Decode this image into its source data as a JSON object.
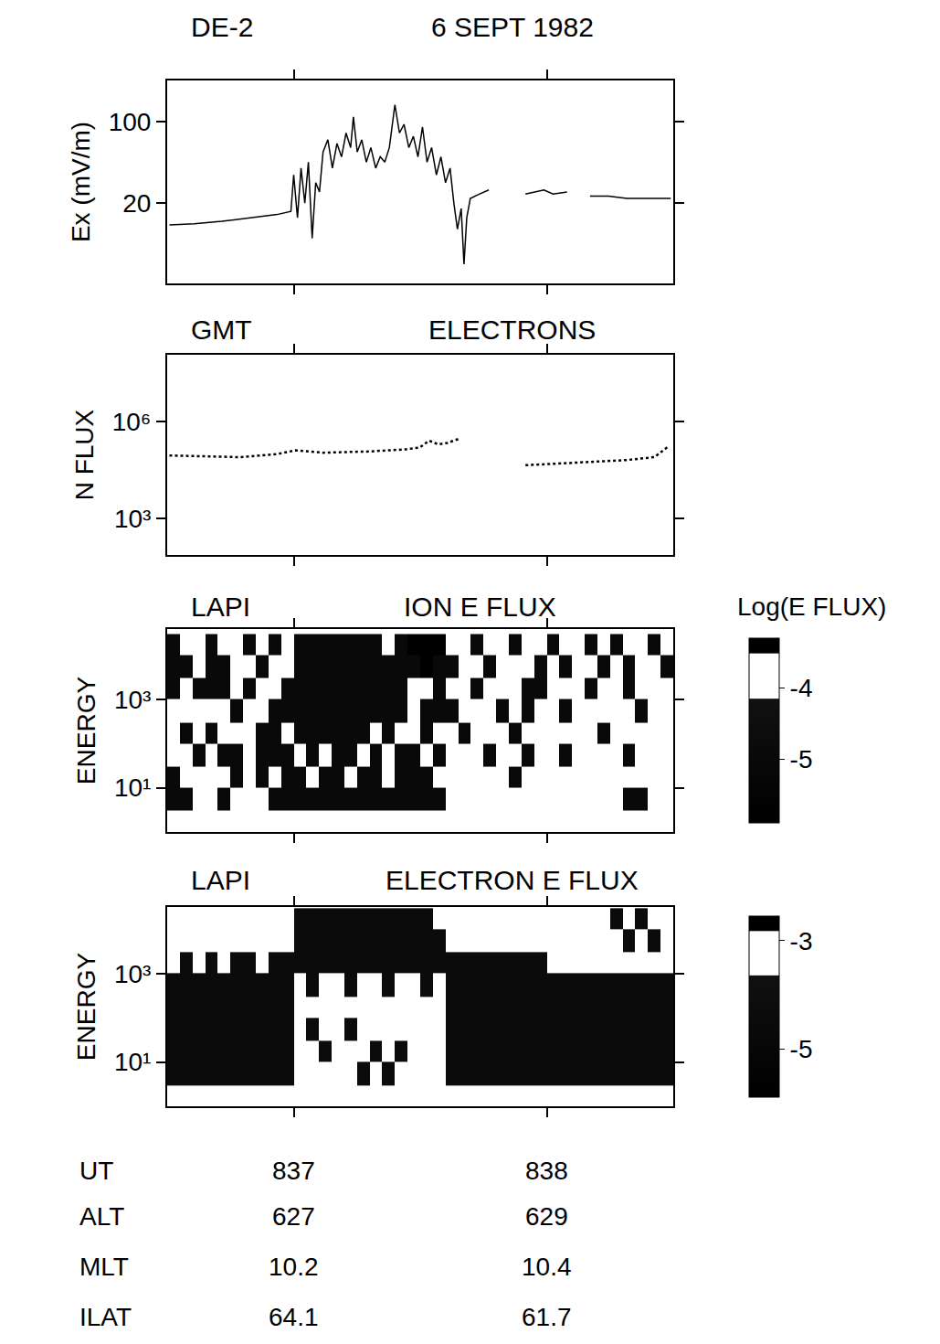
{
  "header": {
    "satellite": "DE-2",
    "date": "6 SEPT 1982"
  },
  "chart_data": [
    {
      "type": "line",
      "ylabel": "Ex (mV/m)",
      "log": "y",
      "color": "#000000",
      "line_style": "solid",
      "grid": false,
      "tick_labels": "y",
      "xlim": [
        836.5,
        838.5
      ],
      "xticks": [
        837,
        838
      ],
      "ylim": [
        4.1,
        226
      ],
      "yticks": [
        20,
        100
      ],
      "x": [
        836.509,
        836.607,
        836.716,
        836.825,
        836.935,
        836.989,
        837.0,
        837.015,
        837.029,
        837.044,
        837.058,
        837.073,
        837.087,
        837.102,
        837.116,
        837.135,
        837.153,
        837.171,
        837.189,
        837.207,
        837.225,
        837.236,
        837.251,
        837.269,
        837.287,
        837.305,
        837.324,
        837.342,
        837.36,
        837.378,
        837.4,
        837.418,
        837.436,
        837.455,
        837.473,
        837.491,
        837.509,
        837.527,
        837.545,
        837.564,
        837.582,
        837.6,
        837.618,
        837.633,
        837.647,
        837.662,
        837.673,
        837.684,
        837.698,
        837.735,
        837.771,
        837.789,
        837.916,
        837.953,
        837.989,
        838.025,
        838.08,
        838.116,
        838.171,
        838.244,
        838.316,
        838.389,
        838.462,
        838.49
      ],
      "values": [
        13,
        13.3,
        14,
        15,
        16,
        17,
        35,
        15,
        40,
        20,
        45,
        10,
        30,
        25,
        55,
        70,
        40,
        65,
        50,
        80,
        60,
        110,
        55,
        70,
        45,
        60,
        40,
        50,
        45,
        60,
        140,
        80,
        95,
        60,
        75,
        50,
        90,
        45,
        60,
        35,
        50,
        30,
        40,
        20,
        12,
        18,
        6,
        15,
        22,
        24,
        26,
        null,
        24,
        25,
        26,
        24,
        25,
        null,
        23,
        23,
        22,
        22,
        22,
        22
      ]
    },
    {
      "type": "line",
      "titles": [
        "GMT",
        "ELECTRONS"
      ],
      "ylabel": "N FLUX",
      "log": "y",
      "color": "#000000",
      "line_style": "dotted",
      "grid": false,
      "tick_labels": "y",
      "xlim": [
        836.5,
        838.5
      ],
      "xticks": [
        837,
        838
      ],
      "ylim": [
        74,
        120000000
      ],
      "yticks": [
        {
          "value": 1000,
          "label": "10³"
        },
        {
          "value": 1000000,
          "label": "10⁶"
        }
      ],
      "x": [
        836.509,
        836.644,
        836.789,
        836.935,
        837.007,
        837.116,
        837.298,
        837.444,
        837.498,
        837.535,
        837.571,
        837.607,
        837.655,
        837.68,
        837.916,
        838.025,
        838.171,
        838.316,
        838.425,
        838.48
      ],
      "values": [
        90000,
        85000,
        80000,
        100000,
        130000,
        110000,
        120000,
        140000,
        160000,
        260000,
        200000,
        220000,
        300000,
        null,
        45000,
        50000,
        55000,
        65000,
        80000,
        170000
      ]
    },
    {
      "type": "heatmap",
      "titles": [
        "LAPI",
        "ION E FLUX"
      ],
      "ylabel": "ENERGY",
      "log": "y",
      "grid": false,
      "tick_labels": "y",
      "xlim": [
        836.5,
        838.5
      ],
      "xticks": [
        837,
        838
      ],
      "ylim": [
        1,
        39000
      ],
      "yticks": [
        {
          "value": 10,
          "label": "10¹"
        },
        {
          "value": 1000,
          "label": "10³"
        }
      ],
      "x_bins": [
        836.5,
        836.55,
        836.6,
        836.65,
        836.7,
        836.75,
        836.8,
        836.85,
        836.9,
        836.95,
        837,
        837.05,
        837.1,
        837.15,
        837.2,
        837.25,
        837.3,
        837.35,
        837.4,
        837.45,
        837.5,
        837.55,
        837.6,
        837.65,
        837.7,
        837.75,
        837.8,
        837.85,
        837.9,
        837.95,
        838,
        838.05,
        838.1,
        838.15,
        838.2,
        838.25,
        838.3,
        838.35,
        838.4,
        838.45,
        838.5
      ],
      "y_bins": [
        3,
        10,
        30,
        100,
        300,
        1000,
        3000,
        10000,
        30000
      ],
      "z": [
        [
          -5,
          -5,
          null,
          null,
          -5,
          null,
          null,
          null,
          -5,
          -5,
          -5,
          -5,
          -5,
          -5,
          -5,
          -5,
          -5,
          -5,
          -5,
          -5,
          -5,
          -5,
          null,
          null,
          null,
          null,
          null,
          null,
          null,
          null,
          null,
          null,
          null,
          null,
          null,
          null,
          -5,
          -5,
          null,
          null
        ],
        [
          -5,
          null,
          null,
          null,
          null,
          -5,
          null,
          -5,
          null,
          -5,
          -5,
          null,
          -5,
          -5,
          null,
          -5,
          -5,
          null,
          -5,
          -5,
          -5,
          null,
          null,
          null,
          null,
          null,
          null,
          -5,
          null,
          null,
          null,
          null,
          null,
          null,
          null,
          null,
          null,
          null,
          null,
          null
        ],
        [
          null,
          null,
          -5,
          null,
          -5,
          -5,
          null,
          -5,
          -5,
          -5,
          null,
          -5,
          null,
          -5,
          -5,
          null,
          -5,
          null,
          -5,
          -5,
          null,
          -5,
          null,
          null,
          null,
          -5,
          null,
          null,
          -5,
          null,
          null,
          -5,
          null,
          null,
          null,
          null,
          -5,
          null,
          null,
          null
        ],
        [
          null,
          -5,
          null,
          -5,
          null,
          null,
          null,
          -5,
          -5,
          null,
          -5,
          -5,
          -5,
          -5,
          -5,
          -5,
          null,
          -5,
          null,
          null,
          -5,
          null,
          null,
          -5,
          null,
          null,
          null,
          -5,
          null,
          null,
          null,
          null,
          null,
          null,
          -5,
          null,
          null,
          null,
          null,
          null
        ],
        [
          null,
          null,
          null,
          null,
          null,
          -5,
          null,
          null,
          -5,
          -5,
          -5,
          -5,
          -5,
          -5,
          -5,
          -5,
          -5,
          -5,
          -5,
          -4,
          -5,
          -5,
          -5,
          null,
          null,
          null,
          -5,
          null,
          -5,
          null,
          null,
          -5,
          null,
          null,
          null,
          null,
          null,
          -5,
          null,
          null
        ],
        [
          -5,
          null,
          -5,
          -5,
          -5,
          null,
          -5,
          null,
          null,
          -5,
          -5,
          -5,
          -5,
          -5,
          -5,
          -5,
          -5,
          -5,
          -5,
          -4,
          -4,
          -5,
          null,
          null,
          -5,
          null,
          null,
          null,
          -5,
          -5,
          null,
          null,
          null,
          -5,
          null,
          null,
          -5,
          null,
          null,
          null
        ],
        [
          -5,
          -5,
          null,
          -5,
          -5,
          null,
          null,
          -5,
          null,
          null,
          -5,
          -5,
          -5,
          -5,
          -5,
          -5,
          -5,
          -5,
          -5,
          -5,
          -3.5,
          -5,
          -5,
          null,
          null,
          -5,
          null,
          null,
          null,
          -5,
          null,
          -5,
          null,
          null,
          -5,
          null,
          -5,
          null,
          null,
          -5
        ],
        [
          -5,
          null,
          null,
          -5,
          null,
          null,
          -5,
          null,
          -5,
          null,
          -5,
          -5,
          -5,
          -5,
          -5,
          -5,
          -5,
          null,
          -5,
          -3.5,
          -3.5,
          -3.5,
          null,
          null,
          -5,
          null,
          null,
          -5,
          null,
          null,
          -5,
          null,
          null,
          -5,
          null,
          -5,
          null,
          null,
          -5,
          null
        ]
      ],
      "colorbar": {
        "title": "Log(E FLUX)",
        "zlim": [
          -5.9,
          -3.3
        ],
        "zticks": [
          -5,
          -4
        ]
      }
    },
    {
      "type": "heatmap",
      "titles": [
        "LAPI",
        "ELECTRON E FLUX"
      ],
      "ylabel": "ENERGY",
      "log": "y",
      "grid": false,
      "tick_labels": "y",
      "xlim": [
        836.5,
        838.5
      ],
      "xticks": [
        837,
        838
      ],
      "ylim": [
        1,
        32000
      ],
      "yticks": [
        {
          "value": 10,
          "label": "10¹"
        },
        {
          "value": 1000,
          "label": "10³"
        }
      ],
      "x_bins": [
        836.5,
        836.55,
        836.6,
        836.65,
        836.7,
        836.75,
        836.8,
        836.85,
        836.9,
        836.95,
        837,
        837.05,
        837.1,
        837.15,
        837.2,
        837.25,
        837.3,
        837.35,
        837.4,
        837.45,
        837.5,
        837.55,
        837.6,
        837.65,
        837.7,
        837.75,
        837.8,
        837.85,
        837.9,
        837.95,
        838,
        838.05,
        838.1,
        838.15,
        838.2,
        838.25,
        838.3,
        838.35,
        838.4,
        838.45,
        838.5
      ],
      "y_bins": [
        3,
        10,
        30,
        100,
        300,
        1000,
        3000,
        10000,
        30000
      ],
      "z": [
        [
          -4.5,
          -4.5,
          -4.5,
          -4.5,
          -4.5,
          -4.5,
          -4.5,
          -4.5,
          -4.5,
          -4.5,
          -3.2,
          -3.2,
          -3.2,
          -3.2,
          -3.2,
          -4.5,
          -3.2,
          -4.5,
          -3.2,
          null,
          -3.2,
          null,
          -4.5,
          -4.5,
          -4.5,
          -4.5,
          -4.5,
          -4.5,
          -4.5,
          -4.5,
          -4.5,
          -4.5,
          -4.5,
          -4.5,
          -4.5,
          -4.5,
          -4.5,
          -4.5,
          -4.5,
          -4.5
        ],
        [
          -4.5,
          -4.5,
          -4.5,
          -4.5,
          -4.5,
          -4.5,
          -4.5,
          -4.5,
          -4.5,
          -4.5,
          -3.2,
          -3.2,
          -4.5,
          -3.2,
          -3.2,
          -3.2,
          -4.5,
          -3.2,
          -4.5,
          null,
          -3.2,
          null,
          -4.5,
          -4.5,
          -4.5,
          -4.5,
          -4.5,
          -4.5,
          -4.5,
          -4.5,
          -4.5,
          -4.5,
          -4.5,
          -4.5,
          -4.5,
          -4.5,
          -4.5,
          -4.5,
          -4.5,
          -4.5
        ],
        [
          -4.5,
          -4.5,
          -4.5,
          -4.5,
          -4.5,
          -4.5,
          -4.5,
          -4.5,
          -4.5,
          -4.5,
          -3.2,
          -4.5,
          -3.2,
          -3.2,
          -4.5,
          -3.2,
          -3.2,
          -3.2,
          -3.2,
          null,
          -3.2,
          null,
          -4.5,
          -4.5,
          -4.5,
          -4.5,
          -4.5,
          -4.5,
          -4.5,
          -4.5,
          -4.5,
          -4.5,
          -4.5,
          -4.5,
          -4.5,
          -4.5,
          -4.5,
          -4.5,
          -4.5,
          -4.5
        ],
        [
          -4.5,
          -4.5,
          -4.5,
          -4.5,
          -4.5,
          -4.5,
          -4.5,
          -4.5,
          -4.5,
          -4.5,
          -3.2,
          -3.2,
          -3.2,
          -3.2,
          -3.2,
          -3.2,
          -3.2,
          -3.2,
          -3.2,
          null,
          -3.2,
          null,
          -4.5,
          -4.5,
          -4.5,
          -4.5,
          -4.5,
          -4.5,
          -4.5,
          -4.5,
          -4.5,
          -4.5,
          -4.5,
          -4.5,
          -4.5,
          -4.5,
          -4.5,
          -4.5,
          -4.5,
          -4.5
        ],
        [
          -4.5,
          -4.5,
          -4.5,
          -4.5,
          -4.5,
          -4.5,
          -4.5,
          -4.5,
          -4.5,
          -4.5,
          null,
          -4.5,
          null,
          null,
          -4.5,
          null,
          null,
          -4.5,
          null,
          null,
          -4.5,
          null,
          -4.5,
          -4.5,
          -4.5,
          -4.5,
          -4.5,
          -4.5,
          -4.5,
          -4.5,
          -4.5,
          -4.5,
          -4.5,
          -4.5,
          -4.5,
          -4.5,
          -4.5,
          -4.5,
          -4.5,
          -4.5
        ],
        [
          null,
          -4.5,
          null,
          -4.5,
          null,
          -4.5,
          -4.5,
          null,
          -4.5,
          -4.5,
          -4.5,
          -4.5,
          -4.5,
          -4.5,
          -4.5,
          -4.5,
          -4.5,
          -4.5,
          -4.5,
          -4.5,
          -4.5,
          -4.5,
          -4.5,
          -4.5,
          -4.5,
          -4.5,
          -4.5,
          -4.5,
          -4.5,
          -4.5,
          null,
          null,
          null,
          null,
          null,
          null,
          null,
          null,
          null,
          null
        ],
        [
          null,
          null,
          null,
          null,
          null,
          null,
          null,
          null,
          null,
          null,
          -4.5,
          -4.5,
          -4.5,
          -4.5,
          -4.5,
          -4.5,
          -4.5,
          -4.5,
          -4.5,
          -4.5,
          -4.5,
          -4.5,
          null,
          null,
          null,
          null,
          null,
          null,
          null,
          null,
          null,
          null,
          null,
          null,
          null,
          null,
          -4.5,
          null,
          -4.5,
          null
        ],
        [
          null,
          null,
          null,
          null,
          null,
          null,
          null,
          null,
          null,
          null,
          -4.5,
          -4.5,
          -4.5,
          -4.5,
          -4.5,
          -4.5,
          -4.5,
          -4.5,
          -4.5,
          -4.5,
          -4.5,
          null,
          null,
          null,
          null,
          null,
          null,
          null,
          null,
          null,
          null,
          null,
          null,
          null,
          null,
          -4.5,
          null,
          -4.5,
          null,
          null
        ]
      ],
      "colorbar": {
        "zlim": [
          -5.88,
          -2.55
        ],
        "zticks": [
          -5,
          -3
        ]
      }
    }
  ],
  "ephemeris": {
    "x": [
      837,
      838
    ],
    "rows": [
      {
        "label": "UT",
        "values": [
          837,
          838
        ]
      },
      {
        "label": "ALT",
        "values": [
          627,
          629
        ]
      },
      {
        "label": "MLT",
        "values": [
          10.2,
          10.4
        ]
      },
      {
        "label": "ILAT",
        "values": [
          64.1,
          61.7
        ]
      }
    ]
  }
}
